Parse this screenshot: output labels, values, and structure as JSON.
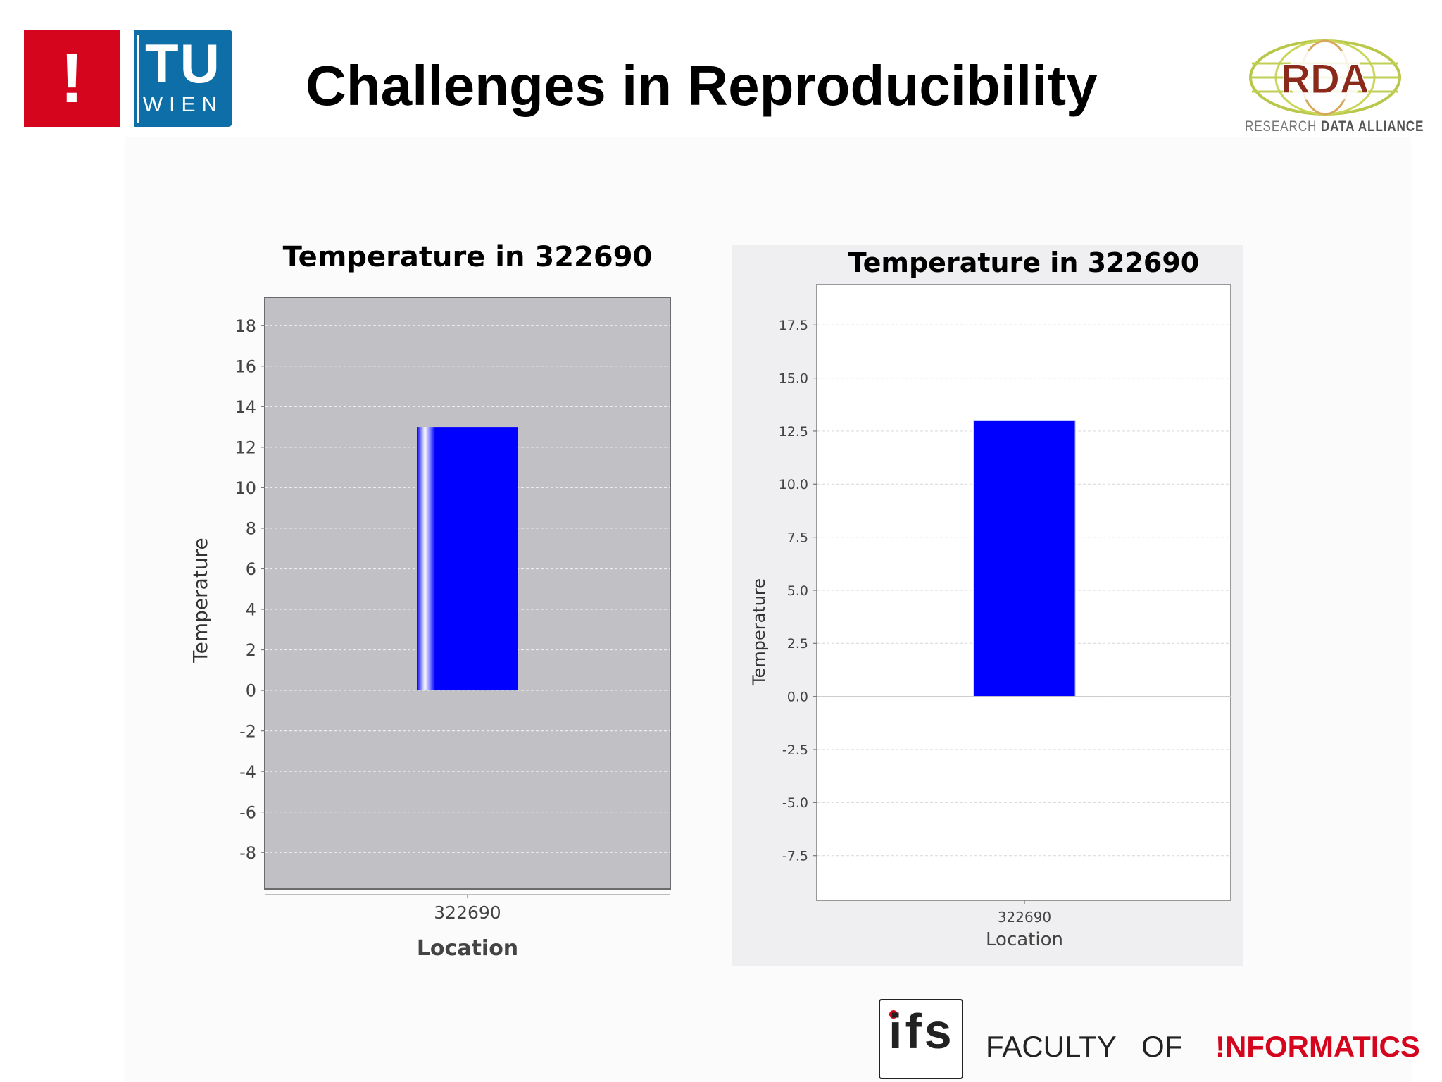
{
  "header": {
    "title": "Challenges in Reproducibility",
    "tu_logo": {
      "mark": "!",
      "text_main": "TU",
      "text_sub": "WIEN"
    },
    "rda_logo": {
      "mark": "RDA",
      "caption_light": "RESEARCH",
      "caption_bold": "DATA ALLIANCE"
    }
  },
  "footer": {
    "ifs_logo": "ifs",
    "faculty_word1": "FACULTY",
    "faculty_word2": "OF",
    "faculty_word3": "!NFORMATICS",
    "accent_color": "#d4051c"
  },
  "chart_data": [
    {
      "type": "bar",
      "title": "Temperature in 322690",
      "xlabel": "Location",
      "ylabel": "Temperature",
      "categories": [
        "322690"
      ],
      "values": [
        13
      ],
      "ylim": [
        -9.8,
        19.4
      ],
      "yticks": [
        -8,
        -6,
        -4,
        -2,
        0,
        2,
        4,
        6,
        8,
        10,
        12,
        14,
        16,
        18
      ],
      "ytick_labels": [
        "-8",
        "-6",
        "-4",
        "-2",
        "0",
        "2",
        "4",
        "6",
        "8",
        "10",
        "12",
        "14",
        "16",
        "18"
      ],
      "grid": true,
      "plot_background": "#c1c0c4",
      "bar_color": "#0000ff"
    },
    {
      "type": "bar",
      "title": "Temperature in 322690",
      "xlabel": "Location",
      "ylabel": "Temperature",
      "categories": [
        "322690"
      ],
      "values": [
        13
      ],
      "ylim": [
        -9.6,
        19.4
      ],
      "yticks": [
        -7.5,
        -5.0,
        -2.5,
        0.0,
        2.5,
        5.0,
        7.5,
        10.0,
        12.5,
        15.0,
        17.5
      ],
      "ytick_labels": [
        "-7.5",
        "-5.0",
        "-2.5",
        "0.0",
        "2.5",
        "5.0",
        "7.5",
        "10.0",
        "12.5",
        "15.0",
        "17.5"
      ],
      "grid": true,
      "plot_background": "#ffffff",
      "bar_color": "#0000ff"
    }
  ]
}
